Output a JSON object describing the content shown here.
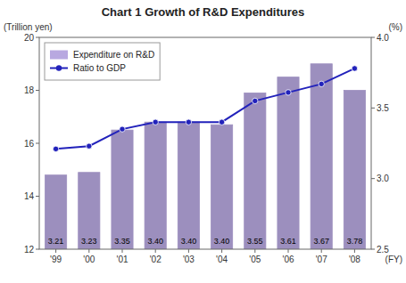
{
  "chart_data": {
    "type": "bar",
    "title": "Chart 1 Growth of R&D Expenditures",
    "x_label": "(FY)",
    "y_label": "(Trillion yen)",
    "y2_label": "(%)",
    "categories": [
      "'99",
      "'00",
      "'01",
      "'02",
      "'03",
      "'04",
      "'05",
      "'06",
      "'07",
      "'08"
    ],
    "series": [
      {
        "name": "Expenditure on R&D",
        "type": "bar",
        "color": "#b8a8e0",
        "values": [
          14.8,
          14.9,
          16.5,
          16.8,
          16.8,
          16.7,
          17.9,
          18.5,
          19.0,
          18.0
        ]
      },
      {
        "name": "Ratio to GDP",
        "type": "line",
        "axis": "y2",
        "color": "#2222bb",
        "marker": "circle",
        "values": [
          3.21,
          3.23,
          3.35,
          3.4,
          3.4,
          3.4,
          3.55,
          3.61,
          3.67,
          3.78
        ],
        "value_labels": [
          "3.21",
          "3.23",
          "3.35",
          "3.40",
          "3.40",
          "3.40",
          "3.55",
          "3.61",
          "3.67",
          "3.78"
        ],
        "data_labels": true
      }
    ],
    "ylim": [
      12,
      20
    ],
    "yticks": [
      12,
      14,
      16,
      18,
      20
    ],
    "y2lim": [
      2.5,
      4.0
    ],
    "y2ticks": [
      2.5,
      {
        "value": 3,
        "label": "3.0"
      },
      3.5,
      {
        "value": 4,
        "label": "4.0"
      }
    ],
    "grid": false,
    "legend": "upper-left"
  }
}
